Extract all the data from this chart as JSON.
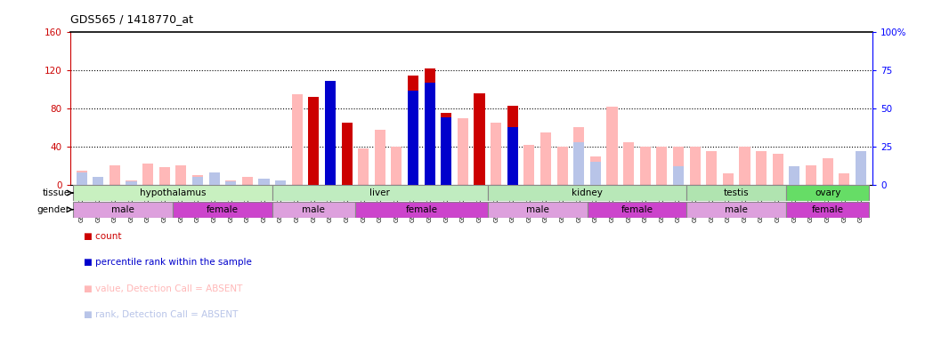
{
  "title": "GDS565 / 1418770_at",
  "samples": [
    "GSM19215",
    "GSM19216",
    "GSM19217",
    "GSM19218",
    "GSM19219",
    "GSM19220",
    "GSM19221",
    "GSM19222",
    "GSM19223",
    "GSM19224",
    "GSM19225",
    "GSM19226",
    "GSM19227",
    "GSM19228",
    "GSM19229",
    "GSM19230",
    "GSM19231",
    "GSM19232",
    "GSM19233",
    "GSM19234",
    "GSM19235",
    "GSM19236",
    "GSM19237",
    "GSM19238",
    "GSM19239",
    "GSM19240",
    "GSM19241",
    "GSM19242",
    "GSM19243",
    "GSM19244",
    "GSM19245",
    "GSM19246",
    "GSM19247",
    "GSM19248",
    "GSM19249",
    "GSM19250",
    "GSM19251",
    "GSM19252",
    "GSM19253",
    "GSM19254",
    "GSM19255",
    "GSM19256",
    "GSM19257",
    "GSM19258",
    "GSM19259",
    "GSM19260",
    "GSM19261",
    "GSM19262"
  ],
  "count": [
    0,
    0,
    0,
    0,
    0,
    0,
    0,
    0,
    0,
    0,
    0,
    0,
    0,
    0,
    92,
    48,
    65,
    0,
    0,
    0,
    115,
    122,
    75,
    0,
    96,
    0,
    83,
    0,
    0,
    0,
    0,
    0,
    0,
    0,
    0,
    0,
    0,
    0,
    0,
    0,
    0,
    0,
    0,
    0,
    0,
    0,
    0,
    0
  ],
  "percentile_raw": [
    0,
    0,
    0,
    0,
    0,
    0,
    0,
    0,
    0,
    0,
    0,
    0,
    0,
    0,
    0,
    68,
    0,
    0,
    0,
    0,
    62,
    67,
    44,
    0,
    0,
    0,
    38,
    0,
    0,
    0,
    0,
    0,
    0,
    0,
    0,
    0,
    0,
    0,
    0,
    0,
    0,
    0,
    0,
    0,
    0,
    0,
    0,
    0
  ],
  "absent_value": [
    15,
    0,
    20,
    4,
    22,
    18,
    20,
    10,
    12,
    4,
    8,
    5,
    3,
    95,
    0,
    0,
    0,
    38,
    58,
    40,
    0,
    0,
    0,
    70,
    0,
    65,
    0,
    42,
    55,
    40,
    60,
    30,
    82,
    45,
    40,
    40,
    40,
    40,
    35,
    12,
    40,
    35,
    32,
    10,
    20,
    28,
    12,
    32
  ],
  "absent_rank_raw": [
    8,
    5,
    0,
    2,
    0,
    0,
    0,
    5,
    8,
    2,
    0,
    4,
    3,
    0,
    0,
    0,
    0,
    0,
    0,
    0,
    0,
    0,
    0,
    0,
    0,
    0,
    0,
    0,
    0,
    0,
    28,
    15,
    0,
    0,
    0,
    0,
    12,
    0,
    0,
    0,
    0,
    0,
    0,
    12,
    0,
    0,
    0,
    22
  ],
  "tissues": [
    {
      "label": "hypothalamus",
      "start": 0,
      "end": 12,
      "color": "#c8f0c0"
    },
    {
      "label": "liver",
      "start": 12,
      "end": 25,
      "color": "#c0ecc0"
    },
    {
      "label": "kidney",
      "start": 25,
      "end": 37,
      "color": "#b8e8b8"
    },
    {
      "label": "testis",
      "start": 37,
      "end": 43,
      "color": "#b0e4b0"
    },
    {
      "label": "ovary",
      "start": 43,
      "end": 48,
      "color": "#66dd66"
    }
  ],
  "genders": [
    {
      "label": "male",
      "start": 0,
      "end": 6,
      "color": "#dda0dd"
    },
    {
      "label": "female",
      "start": 6,
      "end": 12,
      "color": "#cc44cc"
    },
    {
      "label": "male",
      "start": 12,
      "end": 17,
      "color": "#dda0dd"
    },
    {
      "label": "female",
      "start": 17,
      "end": 25,
      "color": "#cc44cc"
    },
    {
      "label": "male",
      "start": 25,
      "end": 31,
      "color": "#dda0dd"
    },
    {
      "label": "female",
      "start": 31,
      "end": 37,
      "color": "#cc44cc"
    },
    {
      "label": "male",
      "start": 37,
      "end": 43,
      "color": "#dda0dd"
    },
    {
      "label": "female",
      "start": 43,
      "end": 48,
      "color": "#cc44cc"
    }
  ],
  "ylim_left": [
    0,
    160
  ],
  "ylim_right": [
    0,
    100
  ],
  "yticks_left": [
    0,
    40,
    80,
    120,
    160
  ],
  "yticks_right": [
    0,
    25,
    50,
    75,
    100
  ],
  "ytick_labels_right": [
    "0",
    "25",
    "50",
    "75",
    "100%"
  ],
  "color_count": "#cc0000",
  "color_percentile": "#0000cc",
  "color_absent_value": "#ffb8b8",
  "color_absent_rank": "#b8c4e8",
  "bar_width": 0.65
}
